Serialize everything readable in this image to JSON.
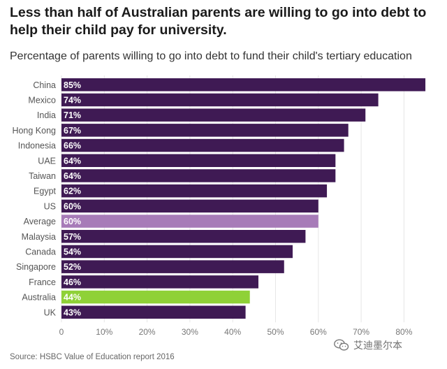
{
  "title": "Less than half of Australian parents are willing to go into debt to help their child pay for university.",
  "subtitle": "Percentage of parents willing to go into debt to fund their child's tertiary education",
  "source": "Source: HSBC Value of Education report 2016",
  "watermark": {
    "text": "艾迪墨尔本",
    "icon": "wechat-icon"
  },
  "colors": {
    "bar": "#3f1a54",
    "average": "#a77bb8",
    "australia": "#8fd137",
    "label_on_bar": "#ffffff",
    "axis_text": "#777777",
    "grid": "#e6e6e6"
  },
  "chart_data": {
    "type": "bar",
    "orientation": "horizontal",
    "categories": [
      "China",
      "Mexico",
      "India",
      "Hong Kong",
      "Indonesia",
      "UAE",
      "Taiwan",
      "Egypt",
      "US",
      "Average",
      "Malaysia",
      "Canada",
      "Singapore",
      "France",
      "Australia",
      "UK"
    ],
    "values": [
      85,
      74,
      71,
      67,
      66,
      64,
      64,
      62,
      60,
      60,
      57,
      54,
      52,
      46,
      44,
      43
    ],
    "data_labels": [
      "85%",
      "74%",
      "71%",
      "67%",
      "66%",
      "64%",
      "64%",
      "62%",
      "60%",
      "60%",
      "57%",
      "54%",
      "52%",
      "46%",
      "44%",
      "43%"
    ],
    "highlight": {
      "Average": "average",
      "Australia": "australia"
    },
    "xlim": [
      0,
      85
    ],
    "xticks": [
      0,
      10,
      20,
      30,
      40,
      50,
      60,
      70,
      80
    ],
    "xtick_labels": [
      "0",
      "10%",
      "20%",
      "30%",
      "40%",
      "50%",
      "60%",
      "70%",
      "80%"
    ],
    "grid": true
  }
}
